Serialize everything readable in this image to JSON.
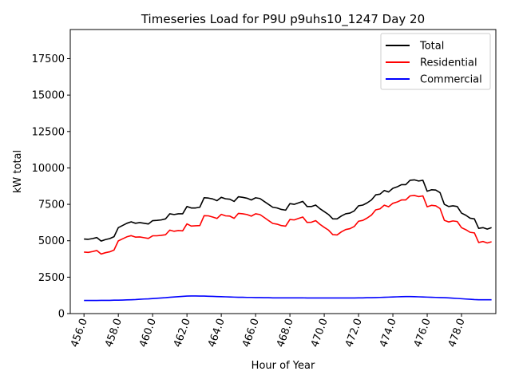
{
  "chart_data": {
    "type": "line",
    "title": "Timeseries Load for P9U p9uhs10_1247  Day 20",
    "xlabel": "Hour of Year",
    "ylabel": "kW total",
    "xlim": [
      455.2,
      480.0
    ],
    "ylim": [
      0,
      19500
    ],
    "x_ticks": [
      456,
      458,
      460,
      462,
      464,
      466,
      468,
      470,
      472,
      474,
      476,
      478
    ],
    "x_tick_labels": [
      "456.0",
      "458.0",
      "460.0",
      "462.0",
      "464.0",
      "466.0",
      "468.0",
      "470.0",
      "472.0",
      "474.0",
      "476.0",
      "478.0"
    ],
    "y_ticks": [
      0,
      2500,
      5000,
      7500,
      10000,
      12500,
      15000,
      17500
    ],
    "y_tick_labels": [
      "0",
      "2500",
      "5000",
      "7500",
      "10000",
      "12500",
      "15000",
      "17500"
    ],
    "legend_position": "top-right",
    "x_start": 456.0,
    "x_step": 0.25,
    "series": [
      {
        "name": "Total",
        "color": "#000000",
        "values": [
          5120,
          5100,
          5150,
          5220,
          4980,
          5080,
          5150,
          5280,
          5900,
          6050,
          6200,
          6300,
          6200,
          6250,
          6200,
          6150,
          6380,
          6400,
          6430,
          6500,
          6850,
          6800,
          6850,
          6850,
          7350,
          7250,
          7250,
          7300,
          7950,
          7930,
          7870,
          7750,
          7980,
          7880,
          7850,
          7700,
          8020,
          7980,
          7920,
          7800,
          7950,
          7900,
          7700,
          7500,
          7300,
          7250,
          7150,
          7100,
          7550,
          7500,
          7600,
          7700,
          7350,
          7350,
          7450,
          7200,
          7000,
          6800,
          6500,
          6500,
          6700,
          6850,
          6900,
          7050,
          7400,
          7450,
          7600,
          7800,
          8150,
          8200,
          8450,
          8350,
          8600,
          8700,
          8850,
          8850,
          9150,
          9180,
          9100,
          9150,
          8400,
          8500,
          8480,
          8300,
          7500,
          7350,
          7400,
          7350,
          6900,
          6750,
          6550,
          6500,
          5850,
          5900,
          5800,
          5900
        ]
      },
      {
        "name": "Residential",
        "color": "#ff0000",
        "values": [
          4220,
          4200,
          4260,
          4330,
          4090,
          4180,
          4240,
          4360,
          4990,
          5130,
          5270,
          5350,
          5250,
          5260,
          5210,
          5160,
          5340,
          5340,
          5370,
          5410,
          5730,
          5650,
          5700,
          5680,
          6160,
          6010,
          6030,
          6040,
          6720,
          6710,
          6630,
          6530,
          6810,
          6710,
          6690,
          6540,
          6880,
          6850,
          6800,
          6690,
          6850,
          6800,
          6600,
          6390,
          6190,
          6140,
          6040,
          6000,
          6460,
          6430,
          6530,
          6630,
          6260,
          6270,
          6380,
          6130,
          5920,
          5730,
          5420,
          5400,
          5610,
          5770,
          5830,
          5980,
          6340,
          6400,
          6560,
          6760,
          7120,
          7190,
          7440,
          7330,
          7570,
          7660,
          7800,
          7800,
          8080,
          8110,
          8030,
          8080,
          7330,
          7430,
          7400,
          7210,
          6400,
          6290,
          6360,
          6320,
          5900,
          5760,
          5580,
          5540,
          4880,
          4950,
          4850,
          4930
        ]
      },
      {
        "name": "Commercial",
        "color": "#0000ff",
        "values": [
          900,
          900,
          900,
          900,
          910,
          910,
          910,
          920,
          920,
          930,
          940,
          950,
          960,
          980,
          1000,
          1010,
          1030,
          1050,
          1070,
          1090,
          1120,
          1140,
          1160,
          1180,
          1200,
          1210,
          1210,
          1200,
          1200,
          1190,
          1180,
          1170,
          1160,
          1150,
          1140,
          1130,
          1120,
          1120,
          1110,
          1110,
          1100,
          1100,
          1090,
          1090,
          1080,
          1080,
          1080,
          1080,
          1080,
          1080,
          1080,
          1080,
          1070,
          1070,
          1070,
          1070,
          1070,
          1070,
          1070,
          1070,
          1070,
          1070,
          1070,
          1070,
          1080,
          1080,
          1090,
          1090,
          1100,
          1110,
          1120,
          1130,
          1140,
          1150,
          1160,
          1170,
          1170,
          1160,
          1150,
          1140,
          1130,
          1120,
          1110,
          1100,
          1090,
          1080,
          1060,
          1040,
          1020,
          1000,
          980,
          960,
          950,
          950,
          950,
          950
        ]
      }
    ]
  }
}
